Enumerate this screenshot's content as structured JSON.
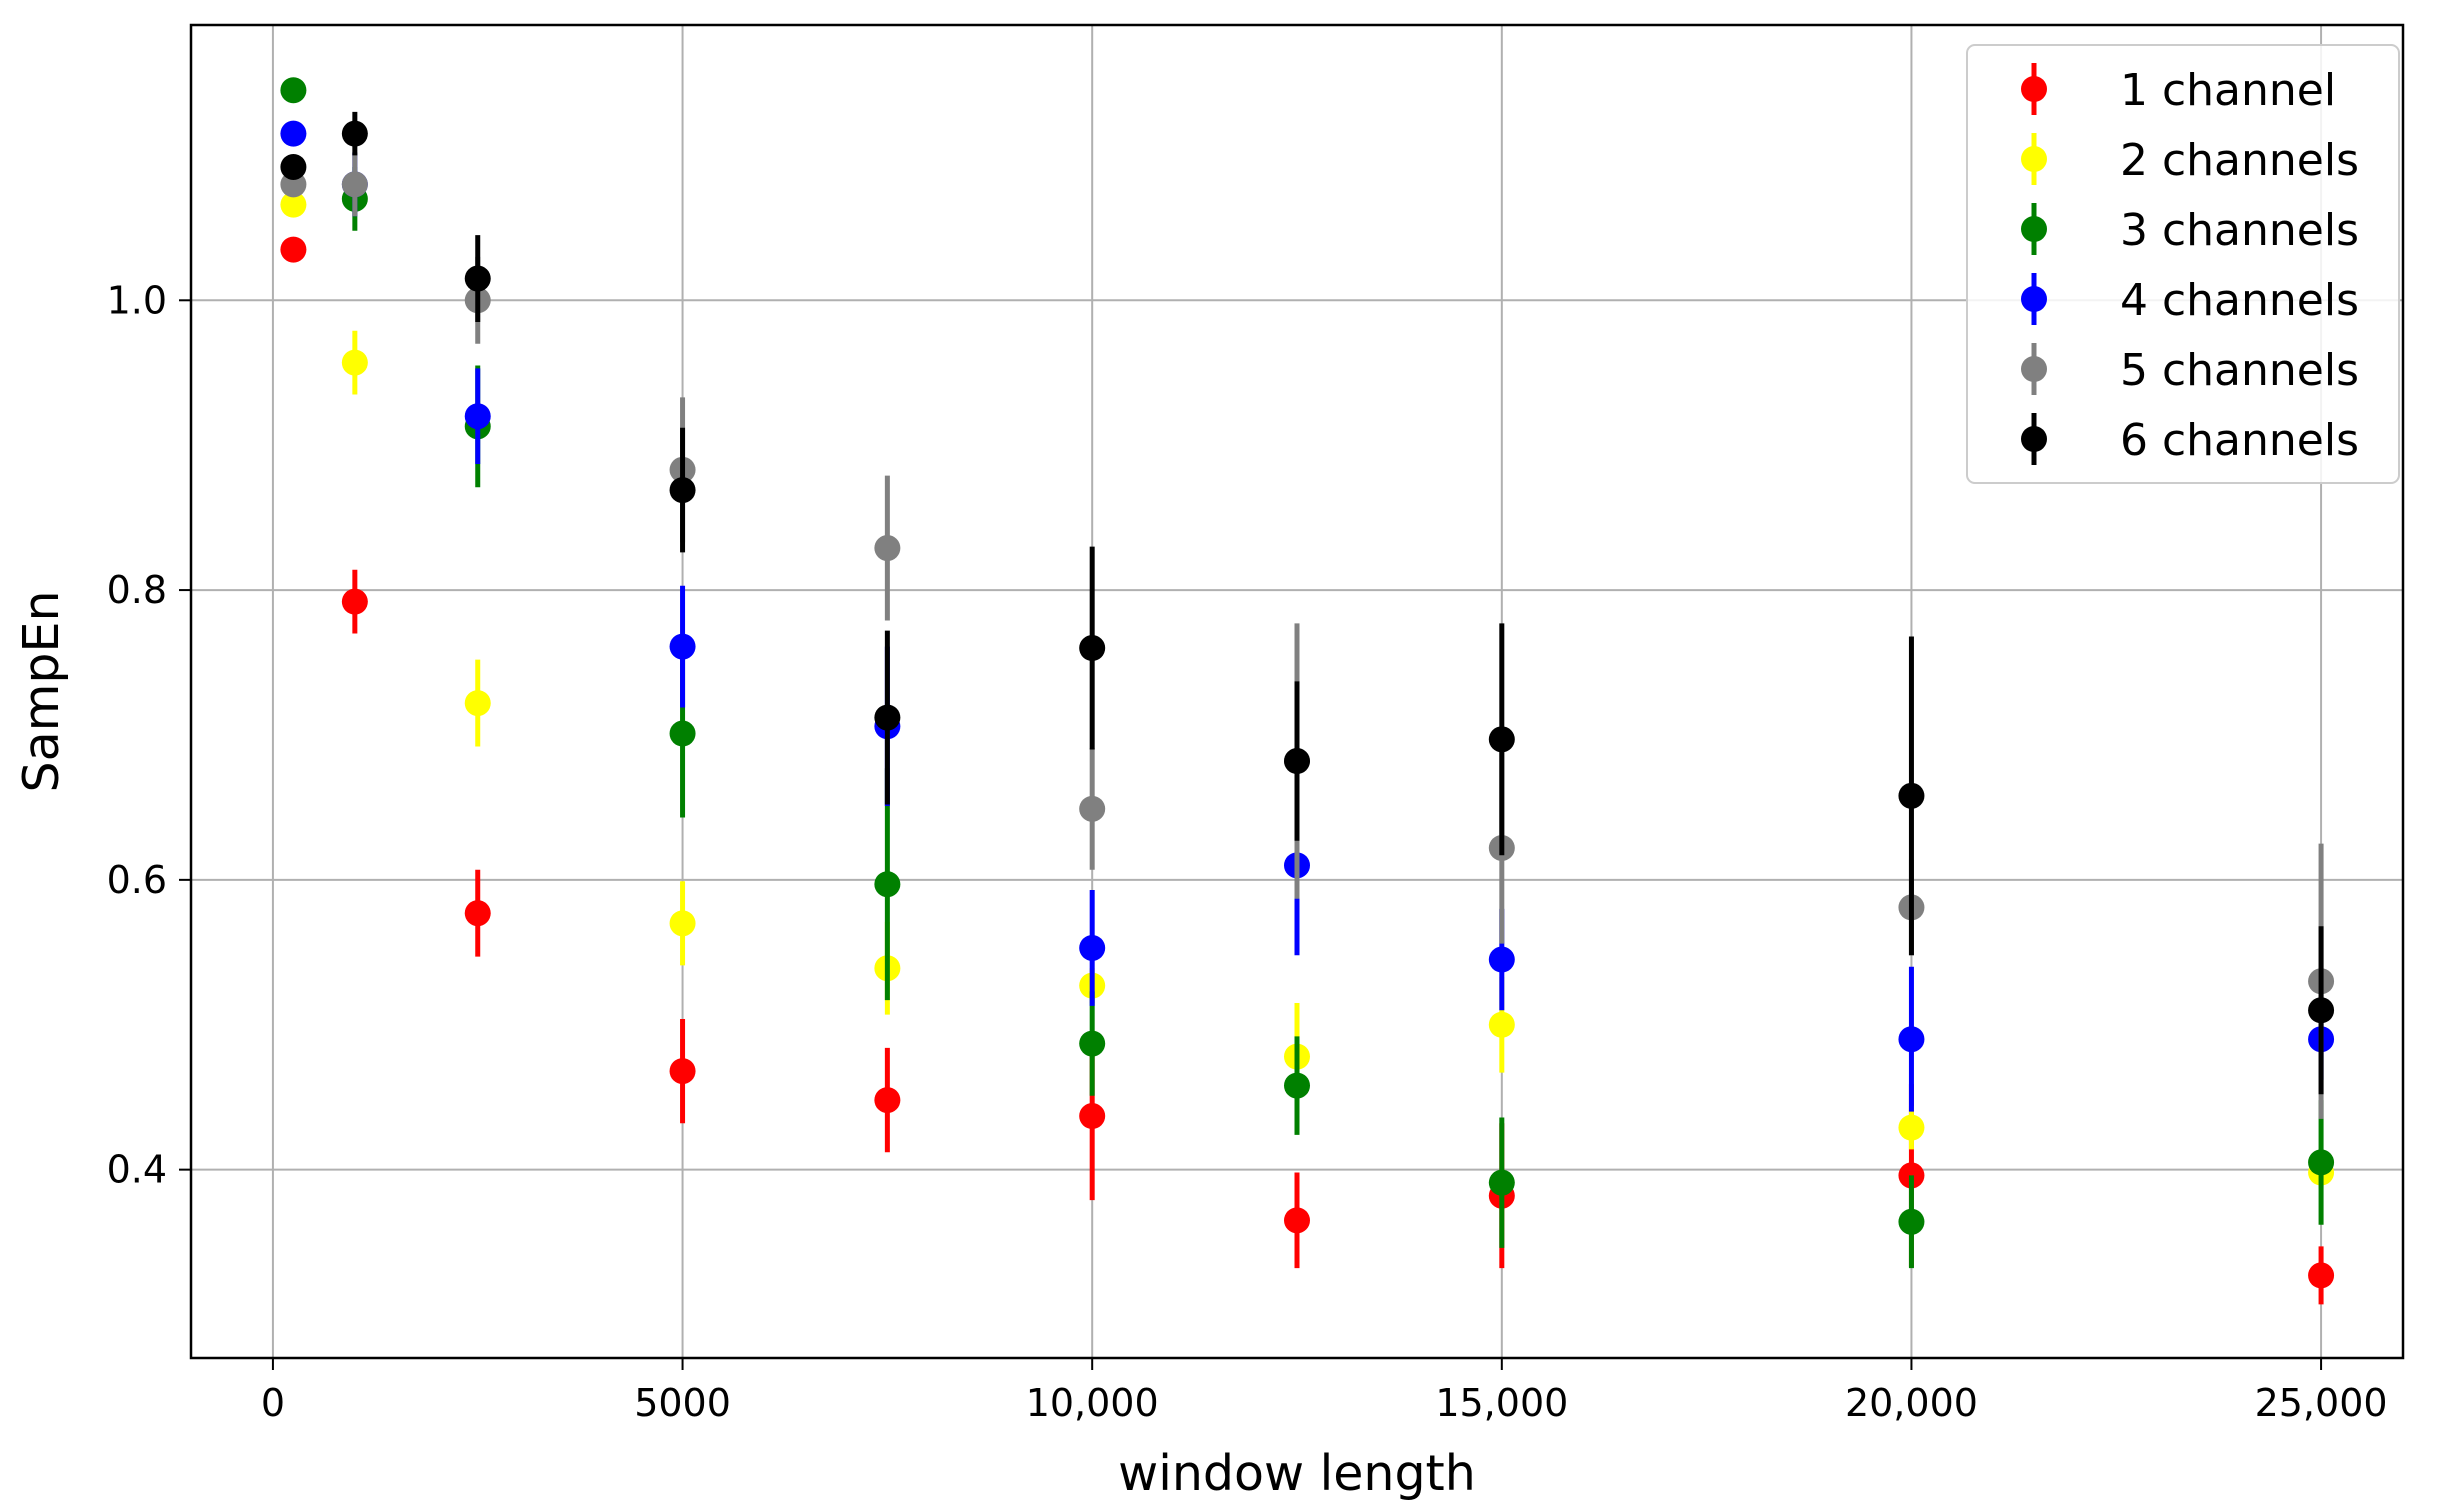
{
  "chart_data": {
    "type": "scatter",
    "title": "",
    "xlabel": "window length",
    "ylabel": "SampEn",
    "xlim": [
      -1000,
      26000
    ],
    "ylim": [
      0.27,
      1.19
    ],
    "xticks": [
      {
        "value": 0,
        "label": "0"
      },
      {
        "value": 5000,
        "label": "5000"
      },
      {
        "value": 10000,
        "label": "10,000"
      },
      {
        "value": 15000,
        "label": "15,000"
      },
      {
        "value": 20000,
        "label": "20,000"
      },
      {
        "value": 25000,
        "label": "25,000"
      }
    ],
    "yticks": [
      {
        "value": 0.4,
        "label": "0.4"
      },
      {
        "value": 0.6,
        "label": "0.6"
      },
      {
        "value": 0.8,
        "label": "0.8"
      },
      {
        "value": 1.0,
        "label": "1.0"
      }
    ],
    "grid": true,
    "legend_position": "top-right",
    "marker": "circle with vertical error bars",
    "x": [
      250,
      1000,
      2500,
      5000,
      7500,
      10000,
      12500,
      15000,
      20000,
      25000
    ],
    "series": [
      {
        "name": "1 channel",
        "color": "#ff0000",
        "values": [
          1.035,
          0.792,
          0.577,
          0.468,
          0.448,
          0.437,
          0.365,
          0.382,
          0.396,
          0.327
        ],
        "errors": [
          0.005,
          0.022,
          0.03,
          0.036,
          0.036,
          0.058,
          0.033,
          0.05,
          0.063,
          0.02
        ]
      },
      {
        "name": "2 channels",
        "color": "#ffff00",
        "values": [
          1.066,
          0.957,
          0.722,
          0.57,
          0.539,
          0.527,
          0.478,
          0.5,
          0.429,
          0.398
        ],
        "errors": [
          0.005,
          0.022,
          0.03,
          0.029,
          0.032,
          0.012,
          0.037,
          0.033,
          0.015,
          0.011
        ]
      },
      {
        "name": "3 channels",
        "color": "#008000",
        "values": [
          1.145,
          1.07,
          0.913,
          0.701,
          0.597,
          0.487,
          0.458,
          0.391,
          0.364,
          0.405
        ],
        "errors": [
          0.005,
          0.022,
          0.042,
          0.058,
          0.08,
          0.036,
          0.034,
          0.045,
          0.032,
          0.043
        ]
      },
      {
        "name": "4 channels",
        "color": "#0000ff",
        "values": [
          1.115,
          1.08,
          0.92,
          0.761,
          0.706,
          0.553,
          0.61,
          0.545,
          0.49,
          0.49
        ],
        "errors": [
          0.005,
          0.022,
          0.033,
          0.042,
          0.055,
          0.04,
          0.062,
          0.035,
          0.05,
          0.028
        ]
      },
      {
        "name": "5 channels",
        "color": "#808080",
        "values": [
          1.08,
          1.08,
          1.0,
          0.883,
          0.829,
          0.649,
          0.682,
          0.622,
          0.581,
          0.53
        ],
        "errors": [
          0.005,
          0.022,
          0.03,
          0.05,
          0.05,
          0.042,
          0.095,
          0.066,
          0.033,
          0.095
        ]
      },
      {
        "name": "6 channels",
        "color": "#000000",
        "values": [
          1.092,
          1.115,
          1.015,
          0.869,
          0.712,
          0.76,
          0.682,
          0.697,
          0.658,
          0.51
        ],
        "errors": [
          0.005,
          0.015,
          0.03,
          0.043,
          0.06,
          0.07,
          0.055,
          0.08,
          0.11,
          0.058
        ]
      }
    ]
  }
}
